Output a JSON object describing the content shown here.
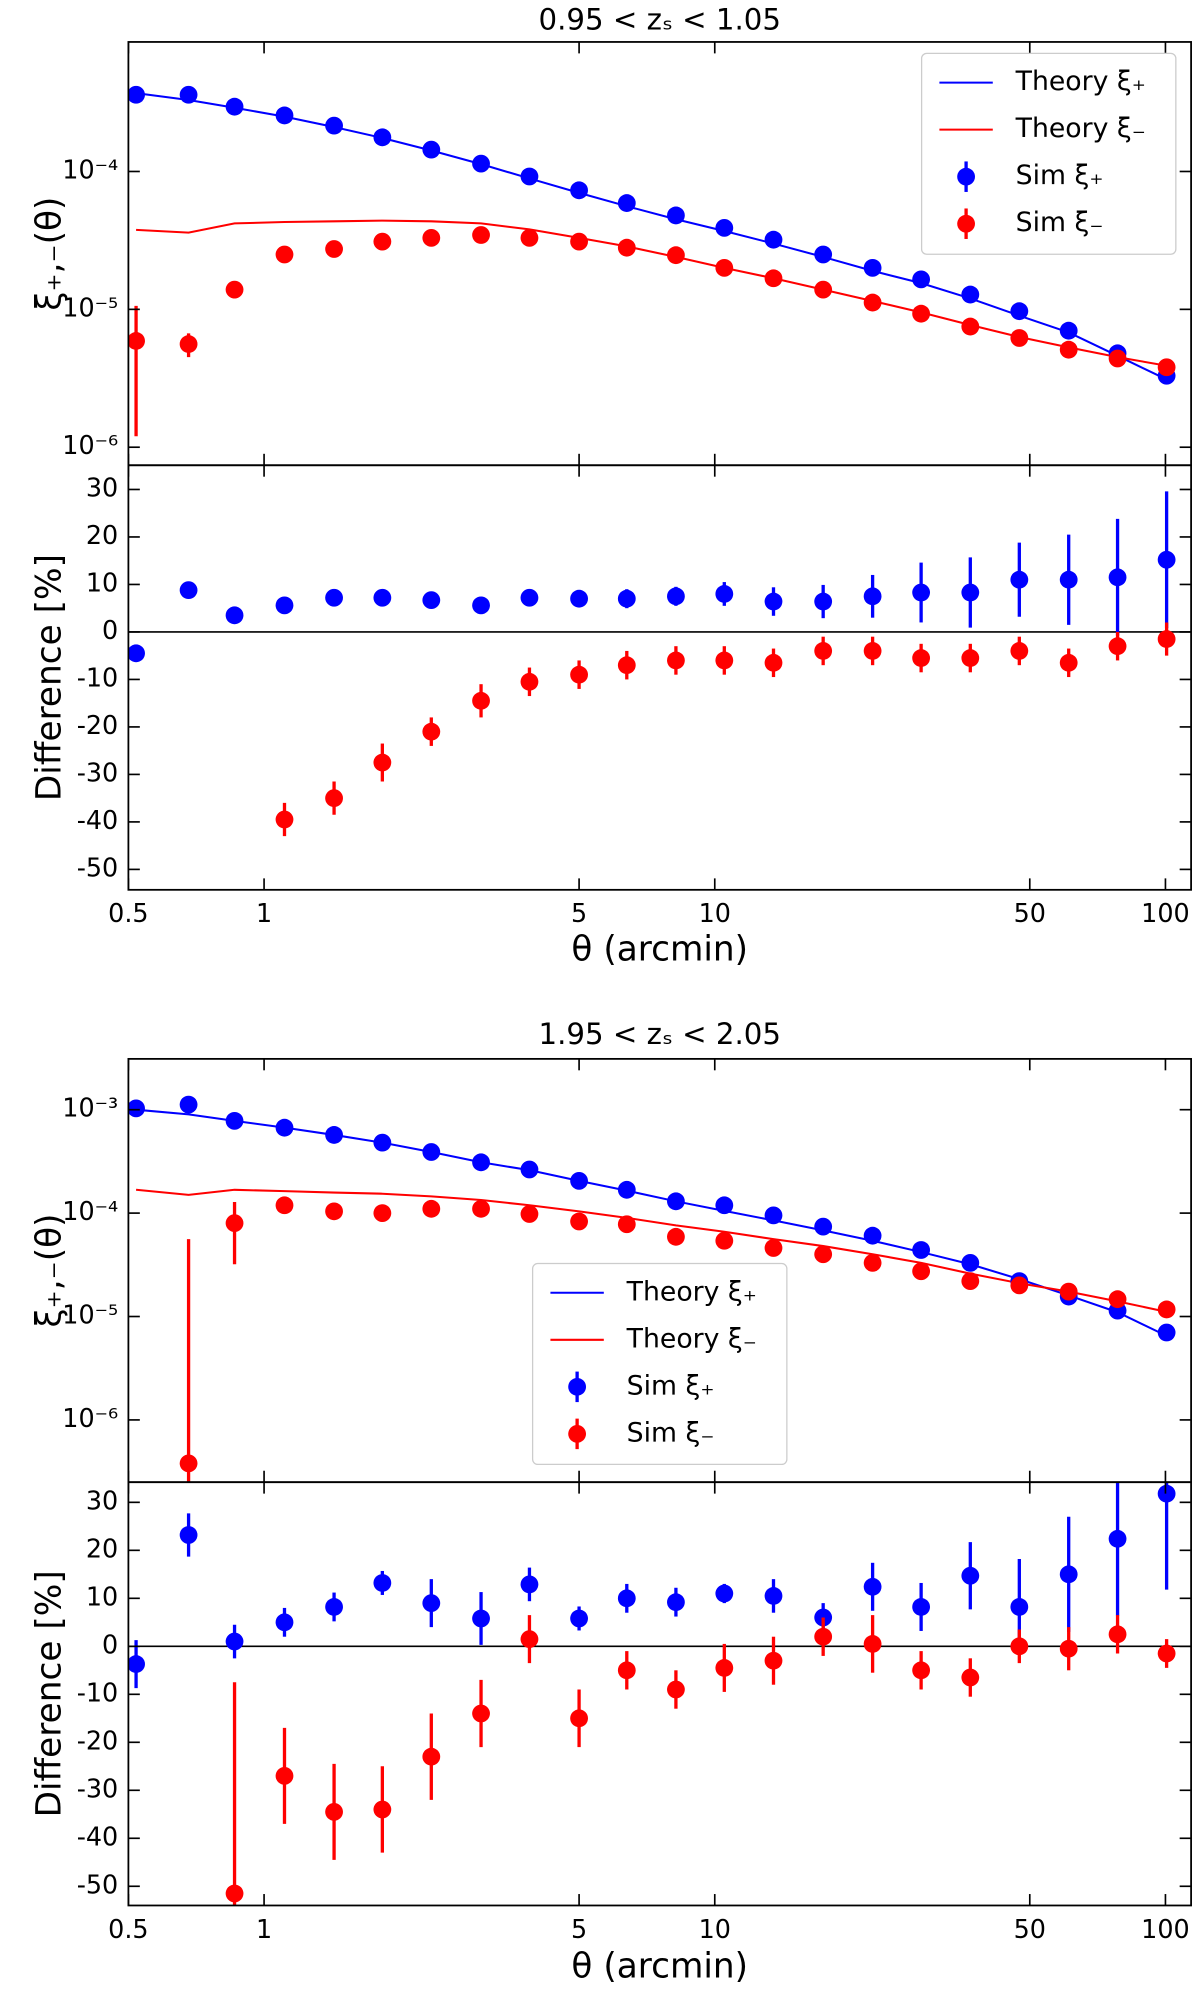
{
  "chart_data": [
    {
      "type": "line",
      "title": "0.95 < zₛ < 1.05",
      "ylabel": "ξ₊,₋(θ)",
      "log_x": true,
      "log_y": true,
      "x": [
        0.52,
        0.68,
        0.86,
        1.11,
        1.43,
        1.83,
        2.35,
        3.03,
        3.88,
        5.0,
        6.38,
        8.2,
        10.5,
        13.5,
        17.4,
        22.4,
        28.7,
        36.9,
        47.4,
        61.0,
        78.3,
        100.6
      ],
      "xlim": [
        0.5,
        114
      ],
      "xticks": [
        0.5,
        1,
        5,
        10,
        50,
        100
      ],
      "ylim": [
        7.4e-07,
        0.00087
      ],
      "yticks": [
        {
          "value": 0.0001,
          "label": "10⁻⁴"
        },
        {
          "value": 1e-05,
          "label": "10⁻⁵"
        },
        {
          "value": 1e-06,
          "label": "10⁻⁶"
        }
      ],
      "legend": "upper right",
      "series": [
        {
          "name": "Theory ξ₊",
          "color": "#0000ff",
          "style": "line",
          "values": [
            0.00037,
            0.00033,
            0.00029,
            0.00025,
            0.00021,
            0.000175,
            0.000142,
            0.000113,
            8.9e-05,
            7e-05,
            5.6e-05,
            4.5e-05,
            3.7e-05,
            3e-05,
            2.4e-05,
            1.9e-05,
            1.55e-05,
            1.2e-05,
            9e-06,
            6.8e-06,
            4.6e-06,
            3.1e-06
          ]
        },
        {
          "name": "Theory ξ₋",
          "color": "#ff0000",
          "style": "line",
          "values": [
            3.77e-05,
            3.6e-05,
            4.2e-05,
            4.3e-05,
            4.35e-05,
            4.4e-05,
            4.35e-05,
            4.2e-05,
            3.8e-05,
            3.3e-05,
            2.86e-05,
            2.4e-05,
            2e-05,
            1.68e-05,
            1.39e-05,
            1.15e-05,
            9.5e-06,
            7.7e-06,
            6.3e-06,
            5.3e-06,
            4.5e-06,
            3.9e-06
          ]
        },
        {
          "name": "Sim ξ₊",
          "color": "#0000ff",
          "style": "marker",
          "values": [
            0.00036,
            0.00036,
            0.000295,
            0.000255,
            0.000215,
            0.000177,
            0.000144,
            0.000114,
            9.2e-05,
            7.3e-05,
            5.9e-05,
            4.8e-05,
            3.9e-05,
            3.2e-05,
            2.5e-05,
            2e-05,
            1.65e-05,
            1.28e-05,
            9.7e-06,
            7e-06,
            4.8e-06,
            3.3e-06
          ]
        },
        {
          "name": "Sim ξ₋",
          "color": "#ff0000",
          "style": "marker",
          "values": [
            5.9e-06,
            5.6e-06,
            1.39e-05,
            2.5e-05,
            2.74e-05,
            3.1e-05,
            3.3e-05,
            3.46e-05,
            3.3e-05,
            3.1e-05,
            2.8e-05,
            2.47e-05,
            2e-05,
            1.68e-05,
            1.39e-05,
            1.12e-05,
            9.3e-06,
            7.5e-06,
            6.2e-06,
            5.1e-06,
            4.4e-06,
            3.8e-06
          ],
          "errors": [
            4.7e-06,
            1.1e-06,
            1.9e-06,
            1.5e-06,
            1.5e-06,
            1.5e-06,
            1.5e-06,
            1.5e-06,
            1.5e-06,
            1.3e-06,
            1.2e-06,
            1e-06,
            8e-07,
            7e-07,
            6e-07,
            5e-07,
            4e-07,
            3e-07,
            3e-07,
            2.5e-07,
            2e-07,
            2e-07
          ]
        }
      ]
    },
    {
      "type": "errorbar",
      "ylabel": "Difference [%]",
      "xlabel": "θ (arcmin)",
      "log_x": true,
      "x": [
        0.52,
        0.68,
        0.86,
        1.11,
        1.43,
        1.83,
        2.35,
        3.03,
        3.88,
        5.0,
        6.38,
        8.2,
        10.5,
        13.5,
        17.4,
        22.4,
        28.7,
        36.9,
        47.4,
        61.0,
        78.3,
        100.6
      ],
      "xlim": [
        0.5,
        114
      ],
      "xticks": [
        0.5,
        1,
        5,
        10,
        50,
        100
      ],
      "ylim": [
        -54.3,
        35.1
      ],
      "yticks": [
        30,
        20,
        10,
        0,
        -10,
        -20,
        -30,
        -40,
        -50
      ],
      "series": [
        {
          "color": "#0000ff",
          "style": "marker",
          "values": [
            -4.5,
            8.8,
            3.5,
            5.6,
            7.2,
            7.2,
            6.7,
            5.6,
            7.2,
            7.0,
            7.0,
            7.5,
            8.0,
            6.4,
            6.4,
            7.5,
            8.3,
            8.3,
            11.0,
            11.0,
            11.5,
            15.2
          ],
          "errors": [
            1,
            1,
            1,
            1,
            1,
            1,
            1,
            1,
            1.5,
            1.5,
            2,
            2,
            2.5,
            3,
            3.5,
            4.5,
            6.3,
            7.4,
            7.8,
            9.5,
            12.3,
            14.4
          ]
        },
        {
          "color": "#ff0000",
          "style": "marker",
          "values": [
            null,
            null,
            null,
            -39.5,
            -35,
            -27.5,
            -21,
            -14.5,
            -10.5,
            -9,
            -7,
            -6,
            -6,
            -6.5,
            -4,
            -4,
            -5.5,
            -5.5,
            -4,
            -6.5,
            -3,
            -1.5
          ],
          "errors": [
            null,
            null,
            null,
            3.5,
            3.5,
            4,
            3,
            3.5,
            3,
            3,
            3,
            3,
            3,
            3,
            3,
            3,
            3,
            3,
            3,
            3,
            3,
            3.5
          ]
        }
      ]
    },
    {
      "type": "line",
      "title": "1.95 < zₛ < 2.05",
      "ylabel": "ξ₊,₋(θ)",
      "log_x": true,
      "log_y": true,
      "x": [
        0.52,
        0.68,
        0.86,
        1.11,
        1.43,
        1.83,
        2.35,
        3.03,
        3.88,
        5.0,
        6.38,
        8.2,
        10.5,
        13.5,
        17.4,
        22.4,
        28.7,
        36.9,
        47.4,
        61.0,
        78.3,
        100.6
      ],
      "xlim": [
        0.5,
        114
      ],
      "xticks": [
        0.5,
        1,
        5,
        10,
        50,
        100
      ],
      "ylim": [
        2.5e-07,
        0.0031
      ],
      "yticks": [
        {
          "value": 0.001,
          "label": "10⁻³"
        },
        {
          "value": 0.0001,
          "label": "10⁻⁴"
        },
        {
          "value": 1e-05,
          "label": "10⁻⁵"
        },
        {
          "value": 1e-06,
          "label": "10⁻⁶"
        }
      ],
      "legend": "lower center",
      "series": [
        {
          "name": "Theory ξ₊",
          "color": "#0000ff",
          "style": "line",
          "values": [
            0.001,
            0.0009,
            0.00078,
            0.00067,
            0.00057,
            0.00048,
            0.00039,
            0.00031,
            0.00026,
            0.000205,
            0.000165,
            0.00013,
            0.000105,
            8.5e-05,
            6.8e-05,
            5.4e-05,
            4.2e-05,
            3.2e-05,
            2.3e-05,
            1.6e-05,
            1.1e-05,
            6.5e-06
          ]
        },
        {
          "name": "Theory ξ₋",
          "color": "#ff0000",
          "style": "line",
          "values": [
            0.000168,
            0.00015,
            0.000168,
            0.000163,
            0.000158,
            0.000154,
            0.000145,
            0.000134,
            0.000119,
            0.000104,
            9e-05,
            7.6e-05,
            6.6e-05,
            5.6e-05,
            4.8e-05,
            4e-05,
            3.3e-05,
            2.6e-05,
            2.1e-05,
            1.74e-05,
            1.4e-05,
            1.11e-05
          ]
        },
        {
          "name": "Sim ξ₊",
          "color": "#0000ff",
          "style": "marker",
          "values": [
            0.00103,
            0.00112,
            0.00078,
            0.00067,
            0.00057,
            0.00048,
            0.00039,
            0.00031,
            0.000264,
            0.000205,
            0.000168,
            0.00013,
            0.000119,
            9.5e-05,
            7.4e-05,
            6.05e-05,
            4.4e-05,
            3.3e-05,
            2.2e-05,
            1.56e-05,
            1.14e-05,
            7e-06
          ]
        },
        {
          "name": "Sim ξ₋",
          "color": "#ff0000",
          "style": "marker",
          "values": [
            null,
            3.8e-07,
            8e-05,
            0.000119,
            0.000104,
            0.0001,
            0.00011,
            0.00011,
            9.8e-05,
            8.3e-05,
            7.8e-05,
            5.9e-05,
            5.4e-05,
            4.6e-05,
            4e-05,
            3.3e-05,
            2.74e-05,
            2.2e-05,
            2e-05,
            1.74e-05,
            1.47e-05,
            1.17e-05
          ],
          "errors": [
            null,
            5.56e-05,
            4.8e-05,
            1e-05,
            8e-06,
            8e-06,
            8e-06,
            8e-06,
            7e-06,
            6e-06,
            5e-06,
            4e-06,
            3e-06,
            3e-06,
            2.5e-06,
            2e-06,
            1.6e-06,
            1.3e-06,
            1.1e-06,
            1e-06,
            9e-07,
            8e-07
          ]
        }
      ]
    },
    {
      "type": "errorbar",
      "ylabel": "Difference [%]",
      "xlabel": "θ (arcmin)",
      "log_x": true,
      "x": [
        0.52,
        0.68,
        0.86,
        1.11,
        1.43,
        1.83,
        2.35,
        3.03,
        3.88,
        5.0,
        6.38,
        8.2,
        10.5,
        13.5,
        17.4,
        22.4,
        28.7,
        36.9,
        47.4,
        61.0,
        78.3,
        100.6
      ],
      "xlim": [
        0.5,
        114
      ],
      "xticks": [
        0.5,
        1,
        5,
        10,
        50,
        100
      ],
      "ylim": [
        -54,
        34.2
      ],
      "yticks": [
        30,
        20,
        10,
        0,
        -10,
        -20,
        -30,
        -40,
        -50
      ],
      "series": [
        {
          "color": "#0000ff",
          "style": "marker",
          "values": [
            -3.7,
            23.2,
            1,
            5,
            8.2,
            13.2,
            9,
            5.8,
            12.9,
            5.8,
            10,
            9.2,
            11,
            10.5,
            6,
            12.4,
            8.2,
            14.7,
            8.2,
            15,
            22.4,
            31.8
          ],
          "errors": [
            5,
            4.5,
            3.5,
            3,
            3,
            2.5,
            5,
            5.5,
            3.5,
            2.5,
            3,
            3,
            2,
            3.5,
            3,
            5,
            5,
            7,
            10,
            12,
            16,
            20
          ]
        },
        {
          "color": "#ff0000",
          "style": "marker",
          "values": [
            null,
            null,
            -51.5,
            -27,
            -34.5,
            -34,
            -23,
            -14,
            1.5,
            -15,
            -5,
            -9,
            -4.5,
            -3,
            2,
            0.5,
            -5,
            -6.5,
            0,
            -0.5,
            2.5,
            -1.5
          ],
          "errors": [
            null,
            null,
            44,
            10,
            10,
            9,
            9,
            7,
            5,
            6,
            4,
            4,
            5,
            5,
            4,
            6,
            4,
            4,
            3.5,
            4.5,
            4,
            3
          ]
        }
      ]
    }
  ]
}
